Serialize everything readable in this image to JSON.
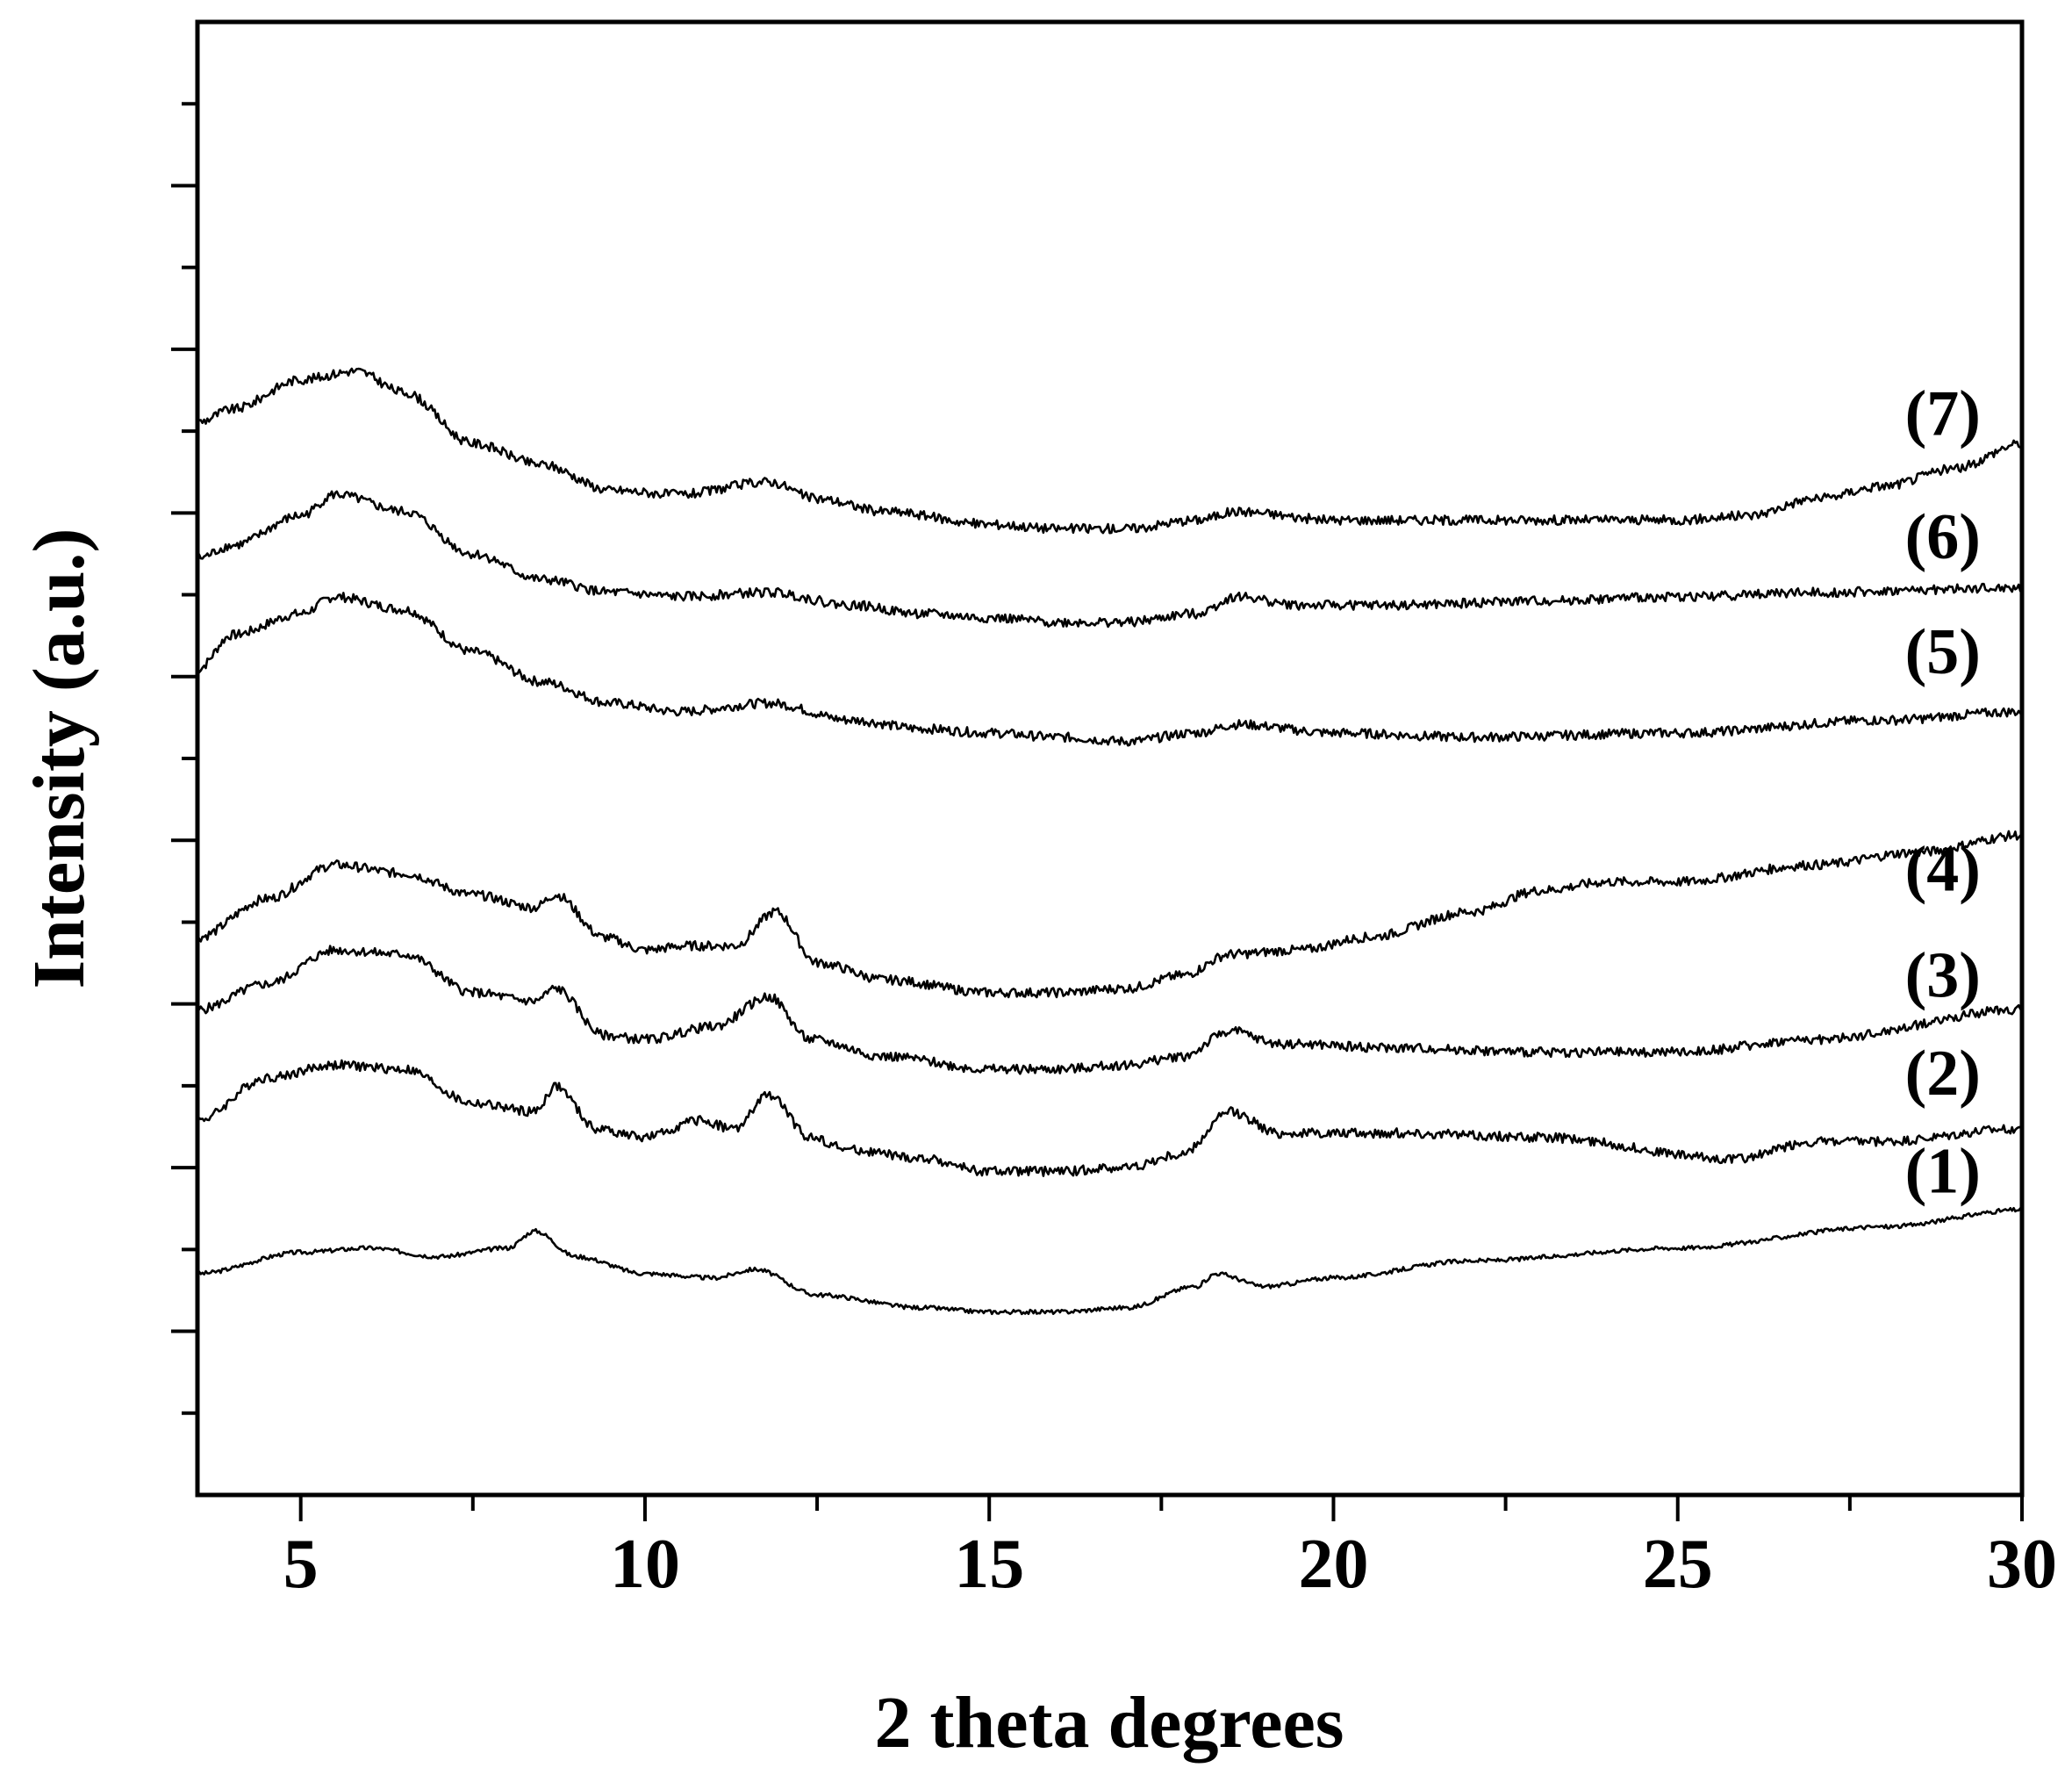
{
  "chart_data": {
    "type": "line",
    "title": "",
    "xlabel": "2 theta degrees",
    "ylabel": "Intensity (a.u.)",
    "xlim": [
      3.5,
      30
    ],
    "ylim": [
      0,
      17.3
    ],
    "x_ticks": [
      5,
      10,
      15,
      20,
      25,
      30
    ],
    "y_tick_labels_shown": false,
    "grid": false,
    "legend": "none",
    "line_color": "#000000",
    "series": [
      {
        "name": "(1)",
        "label_at": [
          28.3,
          3.55
        ],
        "points": [
          [
            3.5,
            2.6
          ],
          [
            5,
            2.85
          ],
          [
            6,
            2.9
          ],
          [
            7,
            2.8
          ],
          [
            8,
            2.9
          ],
          [
            8.4,
            3.1
          ],
          [
            9,
            2.8
          ],
          [
            10,
            2.6
          ],
          [
            11,
            2.55
          ],
          [
            11.6,
            2.65
          ],
          [
            12.5,
            2.35
          ],
          [
            14,
            2.2
          ],
          [
            15,
            2.15
          ],
          [
            16,
            2.15
          ],
          [
            17,
            2.2
          ],
          [
            18,
            2.45
          ],
          [
            18.3,
            2.6
          ],
          [
            19,
            2.45
          ],
          [
            20,
            2.55
          ],
          [
            22,
            2.75
          ],
          [
            25,
            2.9
          ],
          [
            28,
            3.15
          ],
          [
            30,
            3.35
          ]
        ]
      },
      {
        "name": "(2)",
        "label_at": [
          28.3,
          4.7
        ],
        "points": [
          [
            3.5,
            4.4
          ],
          [
            4.5,
            4.9
          ],
          [
            5.5,
            5.05
          ],
          [
            6.5,
            5.0
          ],
          [
            7.5,
            4.6
          ],
          [
            8.4,
            4.5
          ],
          [
            8.7,
            4.8
          ],
          [
            9.3,
            4.3
          ],
          [
            10,
            4.2
          ],
          [
            10.8,
            4.4
          ],
          [
            11.3,
            4.3
          ],
          [
            11.8,
            4.7
          ],
          [
            12.4,
            4.2
          ],
          [
            13,
            4.05
          ],
          [
            14,
            3.95
          ],
          [
            15,
            3.8
          ],
          [
            16,
            3.8
          ],
          [
            17,
            3.85
          ],
          [
            17.8,
            4.0
          ],
          [
            18.5,
            4.5
          ],
          [
            19.2,
            4.25
          ],
          [
            21,
            4.25
          ],
          [
            23,
            4.2
          ],
          [
            25.8,
            3.95
          ],
          [
            27,
            4.15
          ],
          [
            28,
            4.15
          ],
          [
            30,
            4.3
          ]
        ]
      },
      {
        "name": "(3)",
        "label_at": [
          28.3,
          5.85
        ],
        "points": [
          [
            3.5,
            5.7
          ],
          [
            4.5,
            6.0
          ],
          [
            5.5,
            6.4
          ],
          [
            6.5,
            6.35
          ],
          [
            7.5,
            5.9
          ],
          [
            8.4,
            5.8
          ],
          [
            8.7,
            5.95
          ],
          [
            9.4,
            5.4
          ],
          [
            10,
            5.35
          ],
          [
            11,
            5.5
          ],
          [
            11.8,
            5.85
          ],
          [
            12.4,
            5.35
          ],
          [
            13.5,
            5.15
          ],
          [
            15,
            5.0
          ],
          [
            16,
            5.0
          ],
          [
            17,
            5.05
          ],
          [
            17.8,
            5.15
          ],
          [
            18.5,
            5.45
          ],
          [
            19.2,
            5.3
          ],
          [
            21,
            5.25
          ],
          [
            23,
            5.2
          ],
          [
            25,
            5.2
          ],
          [
            27,
            5.35
          ],
          [
            30,
            5.7
          ]
        ]
      },
      {
        "name": "(4)",
        "label_at": [
          28.3,
          7.1
        ],
        "points": [
          [
            3.5,
            6.55
          ],
          [
            4.5,
            7.0
          ],
          [
            5.5,
            7.4
          ],
          [
            6.5,
            7.3
          ],
          [
            7.5,
            7.05
          ],
          [
            8.4,
            6.9
          ],
          [
            8.7,
            7.05
          ],
          [
            9.4,
            6.55
          ],
          [
            10,
            6.4
          ],
          [
            10.6,
            6.45
          ],
          [
            11.3,
            6.45
          ],
          [
            11.9,
            6.85
          ],
          [
            12.5,
            6.25
          ],
          [
            13.5,
            6.05
          ],
          [
            15,
            5.9
          ],
          [
            16,
            5.9
          ],
          [
            17,
            5.95
          ],
          [
            17.8,
            6.1
          ],
          [
            18.5,
            6.35
          ],
          [
            19.5,
            6.4
          ],
          [
            20.5,
            6.55
          ],
          [
            22,
            6.85
          ],
          [
            23,
            7.1
          ],
          [
            24,
            7.2
          ],
          [
            25,
            7.2
          ],
          [
            27,
            7.4
          ],
          [
            28.5,
            7.55
          ],
          [
            30,
            7.75
          ]
        ]
      },
      {
        "name": "(5)",
        "label_at": [
          28.3,
          9.65
        ],
        "points": [
          [
            3.5,
            9.7
          ],
          [
            4,
            10.1
          ],
          [
            5,
            10.35
          ],
          [
            5.5,
            10.55
          ],
          [
            6.5,
            10.4
          ],
          [
            7.5,
            9.9
          ],
          [
            8.5,
            9.55
          ],
          [
            9.5,
            9.3
          ],
          [
            10.5,
            9.2
          ],
          [
            11.8,
            9.3
          ],
          [
            13,
            9.1
          ],
          [
            14,
            9.0
          ],
          [
            15,
            8.95
          ],
          [
            16,
            8.9
          ],
          [
            17,
            8.85
          ],
          [
            18,
            8.95
          ],
          [
            18.6,
            9.05
          ],
          [
            20,
            8.95
          ],
          [
            22,
            8.9
          ],
          [
            25,
            8.95
          ],
          [
            28,
            9.1
          ],
          [
            30,
            9.2
          ]
        ]
      },
      {
        "name": "(6)",
        "label_at": [
          28.3,
          11.0
        ],
        "points": [
          [
            3.5,
            11.0
          ],
          [
            4,
            11.15
          ],
          [
            5,
            11.5
          ],
          [
            5.5,
            11.75
          ],
          [
            6.5,
            11.55
          ],
          [
            7.5,
            11.05
          ],
          [
            8.5,
            10.75
          ],
          [
            9.5,
            10.6
          ],
          [
            10.5,
            10.55
          ],
          [
            11.8,
            10.6
          ],
          [
            13,
            10.45
          ],
          [
            14,
            10.35
          ],
          [
            15,
            10.3
          ],
          [
            16,
            10.25
          ],
          [
            17,
            10.25
          ],
          [
            18,
            10.35
          ],
          [
            18.6,
            10.55
          ],
          [
            19.5,
            10.45
          ],
          [
            21,
            10.45
          ],
          [
            23,
            10.5
          ],
          [
            25,
            10.55
          ],
          [
            27,
            10.6
          ],
          [
            30,
            10.65
          ]
        ]
      },
      {
        "name": "(7)",
        "label_at": [
          28.3,
          12.45
        ],
        "points": [
          [
            3.5,
            12.6
          ],
          [
            4,
            12.75
          ],
          [
            5,
            13.1
          ],
          [
            5.8,
            13.2
          ],
          [
            6.5,
            12.95
          ],
          [
            7.5,
            12.35
          ],
          [
            8.5,
            12.1
          ],
          [
            9.5,
            11.8
          ],
          [
            10.5,
            11.75
          ],
          [
            11.8,
            11.9
          ],
          [
            12.5,
            11.7
          ],
          [
            13.5,
            11.55
          ],
          [
            15,
            11.4
          ],
          [
            16,
            11.35
          ],
          [
            17,
            11.35
          ],
          [
            18,
            11.45
          ],
          [
            18.6,
            11.55
          ],
          [
            20,
            11.45
          ],
          [
            22,
            11.45
          ],
          [
            24,
            11.45
          ],
          [
            25,
            11.45
          ],
          [
            26,
            11.5
          ],
          [
            27,
            11.7
          ],
          [
            28,
            11.85
          ],
          [
            29,
            12.05
          ],
          [
            30,
            12.35
          ]
        ]
      }
    ]
  }
}
